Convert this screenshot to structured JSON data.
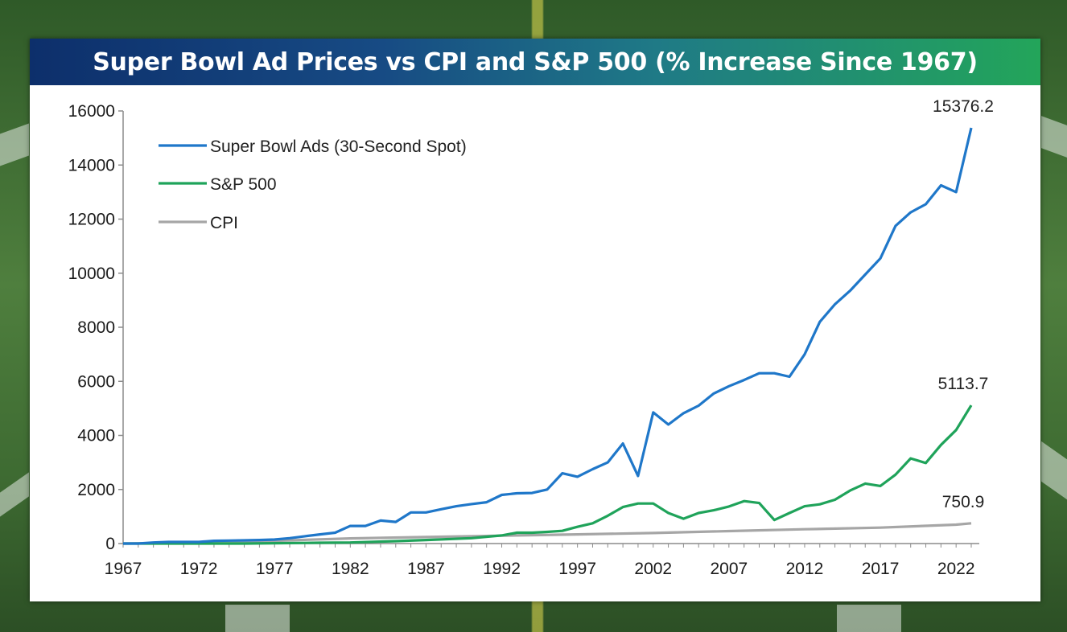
{
  "chart_data": {
    "type": "line",
    "title": "Super Bowl Ad Prices vs CPI and S&P 500 (% Increase Since 1967)",
    "xlabel": "",
    "ylabel": "",
    "ylim": [
      0,
      16000
    ],
    "xlim": [
      1967,
      2023
    ],
    "yticks": [
      0,
      2000,
      4000,
      6000,
      8000,
      10000,
      12000,
      14000,
      16000
    ],
    "xticks": [
      1967,
      1972,
      1977,
      1982,
      1987,
      1992,
      1997,
      2002,
      2007,
      2012,
      2017,
      2022
    ],
    "grid": false,
    "legend_position": "top-left",
    "series": [
      {
        "name": "Super Bowl Ads (30-Second Spot)",
        "color": "#1f77c9",
        "end_label": "15376.2",
        "points": [
          [
            1967,
            0
          ],
          [
            1968,
            0
          ],
          [
            1969,
            40
          ],
          [
            1970,
            60
          ],
          [
            1971,
            60
          ],
          [
            1972,
            60
          ],
          [
            1973,
            100
          ],
          [
            1974,
            110
          ],
          [
            1975,
            120
          ],
          [
            1976,
            130
          ],
          [
            1977,
            150
          ],
          [
            1978,
            200
          ],
          [
            1979,
            270
          ],
          [
            1980,
            340
          ],
          [
            1981,
            400
          ],
          [
            1982,
            650
          ],
          [
            1983,
            650
          ],
          [
            1984,
            850
          ],
          [
            1985,
            800
          ],
          [
            1986,
            1150
          ],
          [
            1987,
            1150
          ],
          [
            1988,
            1270
          ],
          [
            1989,
            1380
          ],
          [
            1990,
            1460
          ],
          [
            1991,
            1530
          ],
          [
            1992,
            1800
          ],
          [
            1993,
            1860
          ],
          [
            1994,
            1870
          ],
          [
            1995,
            2000
          ],
          [
            1996,
            2600
          ],
          [
            1997,
            2470
          ],
          [
            1998,
            2750
          ],
          [
            1999,
            3000
          ],
          [
            2000,
            3700
          ],
          [
            2001,
            2500
          ],
          [
            2002,
            4850
          ],
          [
            2003,
            4400
          ],
          [
            2004,
            4820
          ],
          [
            2005,
            5100
          ],
          [
            2006,
            5550
          ],
          [
            2007,
            5820
          ],
          [
            2008,
            6050
          ],
          [
            2009,
            6300
          ],
          [
            2010,
            6300
          ],
          [
            2011,
            6170
          ],
          [
            2012,
            7000
          ],
          [
            2013,
            8200
          ],
          [
            2014,
            8850
          ],
          [
            2015,
            9350
          ],
          [
            2016,
            9950
          ],
          [
            2017,
            10550
          ],
          [
            2018,
            11750
          ],
          [
            2019,
            12250
          ],
          [
            2020,
            12550
          ],
          [
            2021,
            13250
          ],
          [
            2022,
            13000
          ],
          [
            2023,
            15376.2
          ]
        ]
      },
      {
        "name": "S&P 500",
        "color": "#1fa35a",
        "end_label": "5113.7",
        "points": [
          [
            1967,
            0
          ],
          [
            1975,
            0
          ],
          [
            1980,
            30
          ],
          [
            1982,
            40
          ],
          [
            1985,
            90
          ],
          [
            1987,
            130
          ],
          [
            1990,
            200
          ],
          [
            1992,
            300
          ],
          [
            1993,
            400
          ],
          [
            1994,
            400
          ],
          [
            1995,
            430
          ],
          [
            1996,
            470
          ],
          [
            1997,
            620
          ],
          [
            1998,
            750
          ],
          [
            1999,
            1030
          ],
          [
            2000,
            1350
          ],
          [
            2001,
            1480
          ],
          [
            2002,
            1480
          ],
          [
            2003,
            1130
          ],
          [
            2004,
            920
          ],
          [
            2005,
            1130
          ],
          [
            2006,
            1230
          ],
          [
            2007,
            1370
          ],
          [
            2008,
            1570
          ],
          [
            2009,
            1500
          ],
          [
            2010,
            870
          ],
          [
            2011,
            1130
          ],
          [
            2012,
            1380
          ],
          [
            2013,
            1450
          ],
          [
            2014,
            1620
          ],
          [
            2015,
            1960
          ],
          [
            2016,
            2220
          ],
          [
            2017,
            2130
          ],
          [
            2018,
            2550
          ],
          [
            2019,
            3150
          ],
          [
            2020,
            2980
          ],
          [
            2021,
            3650
          ],
          [
            2022,
            4200
          ],
          [
            2023,
            5113.7
          ]
        ]
      },
      {
        "name": "CPI",
        "color": "#a6a6a6",
        "end_label": "750.9",
        "points": [
          [
            1967,
            0
          ],
          [
            1972,
            30
          ],
          [
            1977,
            100
          ],
          [
            1982,
            190
          ],
          [
            1987,
            240
          ],
          [
            1992,
            290
          ],
          [
            1997,
            340
          ],
          [
            2002,
            390
          ],
          [
            2007,
            460
          ],
          [
            2012,
            530
          ],
          [
            2017,
            590
          ],
          [
            2022,
            700
          ],
          [
            2023,
            750.9
          ]
        ]
      }
    ]
  }
}
